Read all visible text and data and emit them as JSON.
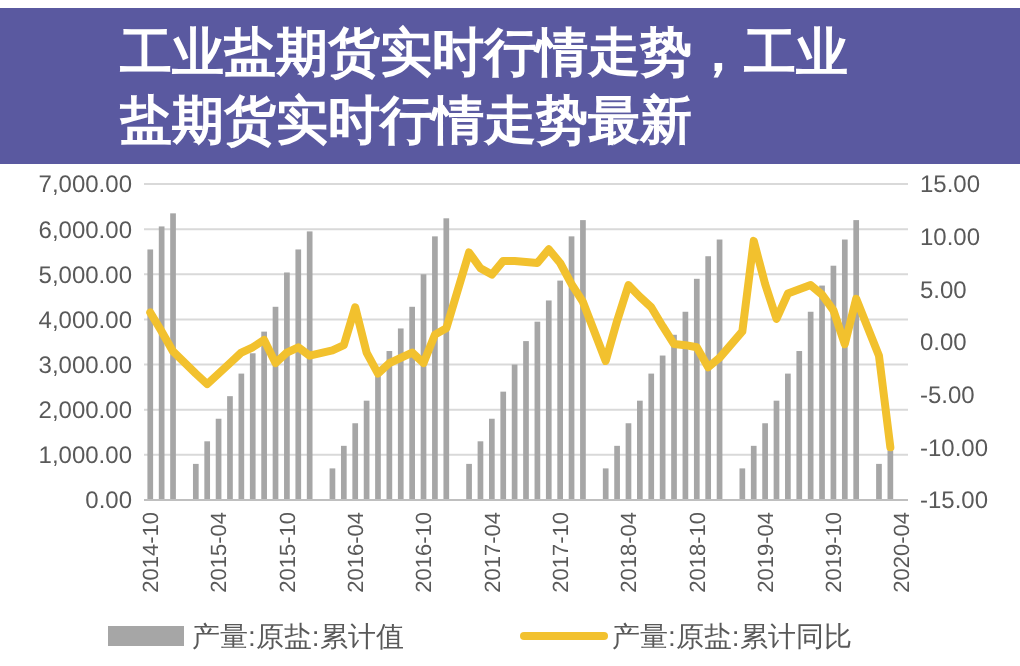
{
  "chart_data": {
    "type": "bar",
    "title": "工业盐期货实时行情走势，工业盐期货实时行情走势最新",
    "categories": [
      "2014-10",
      null,
      null,
      null,
      null,
      null,
      "2015-04",
      null,
      null,
      null,
      null,
      null,
      "2015-10",
      null,
      null,
      null,
      null,
      null,
      "2016-04",
      null,
      null,
      null,
      null,
      null,
      "2016-10",
      null,
      null,
      null,
      null,
      null,
      "2017-04",
      null,
      null,
      null,
      null,
      null,
      "2017-10",
      null,
      null,
      null,
      null,
      null,
      "2018-04",
      null,
      null,
      null,
      null,
      null,
      "2018-10",
      null,
      null,
      null,
      null,
      null,
      "2019-04",
      null,
      null,
      null,
      null,
      null,
      "2019-10",
      null,
      null,
      null,
      null,
      null,
      "2020-04"
    ],
    "series": [
      {
        "name": "产量:原盐:累计值",
        "color": "#a6a6a6",
        "values": [
          5550,
          6060,
          6350,
          null,
          800,
          1300,
          1800,
          2300,
          2800,
          3250,
          3730,
          4280,
          5040,
          5550,
          5950,
          null,
          700,
          1200,
          1700,
          2200,
          2800,
          3300,
          3800,
          4280,
          5000,
          5840,
          6240,
          null,
          800,
          1300,
          1800,
          2400,
          3000,
          3520,
          3950,
          4420,
          4860,
          5840,
          6200,
          null,
          700,
          1200,
          1700,
          2200,
          2800,
          3200,
          3660,
          4170,
          4900,
          5400,
          5770,
          null,
          700,
          1200,
          1700,
          2200,
          2800,
          3300,
          4170,
          4750,
          5190,
          5770,
          6200,
          null,
          800,
          1100,
          null
        ]
      },
      {
        "name": "产量:原盐:累计同比",
        "type": "line",
        "axis": "y2",
        "color": "#f2c12e",
        "values": [
          2.8,
          1.0,
          -0.9,
          null,
          -3,
          -4,
          -3,
          -2,
          -1,
          -0.5,
          0.2,
          -2,
          -1,
          -0.5,
          -1.3,
          null,
          -0.8,
          -0.3,
          3.3,
          -1,
          -3,
          -2,
          -1.5,
          -1,
          -2,
          0.7,
          1.3,
          null,
          8.5,
          7,
          6.4,
          7.7,
          7.7,
          7.6,
          7.5,
          8.8,
          7.5,
          5.5,
          3.8,
          null,
          -1.8,
          2,
          5.4,
          4.3,
          3.3,
          1.5,
          -0.2,
          -0.3,
          -0.5,
          -2.4,
          -1.5,
          null,
          1,
          9.6,
          5.5,
          2.2,
          4.6,
          5,
          5.4,
          4.5,
          3,
          -0.2,
          4.1,
          null,
          -1.3,
          -10,
          null
        ]
      }
    ],
    "ylim": [
      0,
      7000
    ],
    "yticks": [
      {
        "value": 0,
        "label": "0.00"
      },
      {
        "value": 1000,
        "label": "1,000.00"
      },
      {
        "value": 2000,
        "label": "2,000.00"
      },
      {
        "value": 3000,
        "label": "3,000.00"
      },
      {
        "value": 4000,
        "label": "4,000.00"
      },
      {
        "value": 5000,
        "label": "5,000.00"
      },
      {
        "value": 6000,
        "label": "6,000.00"
      },
      {
        "value": 7000,
        "label": "7,000.00"
      }
    ],
    "y2lim": [
      -15,
      15
    ],
    "y2ticks": [
      {
        "value": -15,
        "label": "-15.00"
      },
      {
        "value": -10,
        "label": "-10.00"
      },
      {
        "value": -5,
        "label": "-5.00"
      },
      {
        "value": 0,
        "label": "0.00"
      },
      {
        "value": 5,
        "label": "5.00"
      },
      {
        "value": 10,
        "label": "10.00"
      },
      {
        "value": 15,
        "label": "15.00"
      }
    ],
    "grid": "y",
    "legend": "bottom"
  }
}
